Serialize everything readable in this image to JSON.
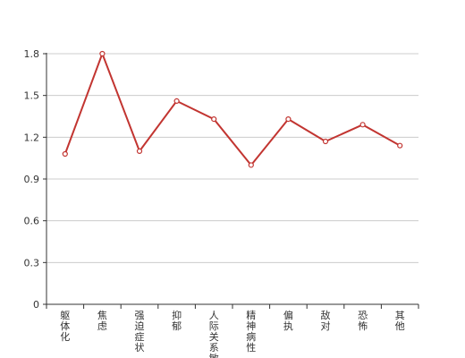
{
  "chart_data": {
    "type": "line",
    "categories": [
      "躯体化",
      "焦虑",
      "强迫症状",
      "抑郁",
      "人际关系敏感",
      "精神病性",
      "偏执",
      "敌对",
      "恐怖",
      "其他"
    ],
    "series": [
      {
        "values": [
          1.08,
          1.8,
          1.1,
          1.46,
          1.33,
          1.0,
          1.33,
          1.17,
          1.29,
          1.14
        ]
      }
    ],
    "y_ticks": [
      "0",
      "0.3",
      "0.6",
      "0.9",
      "1.2",
      "1.5",
      "1.8"
    ],
    "ylim": [
      0,
      1.8
    ],
    "grid": true,
    "legend": "none",
    "colors": {
      "line": "#c23531",
      "marker_fill": "#ffffff",
      "grid": "#cccccc",
      "axis": "#333333"
    }
  }
}
